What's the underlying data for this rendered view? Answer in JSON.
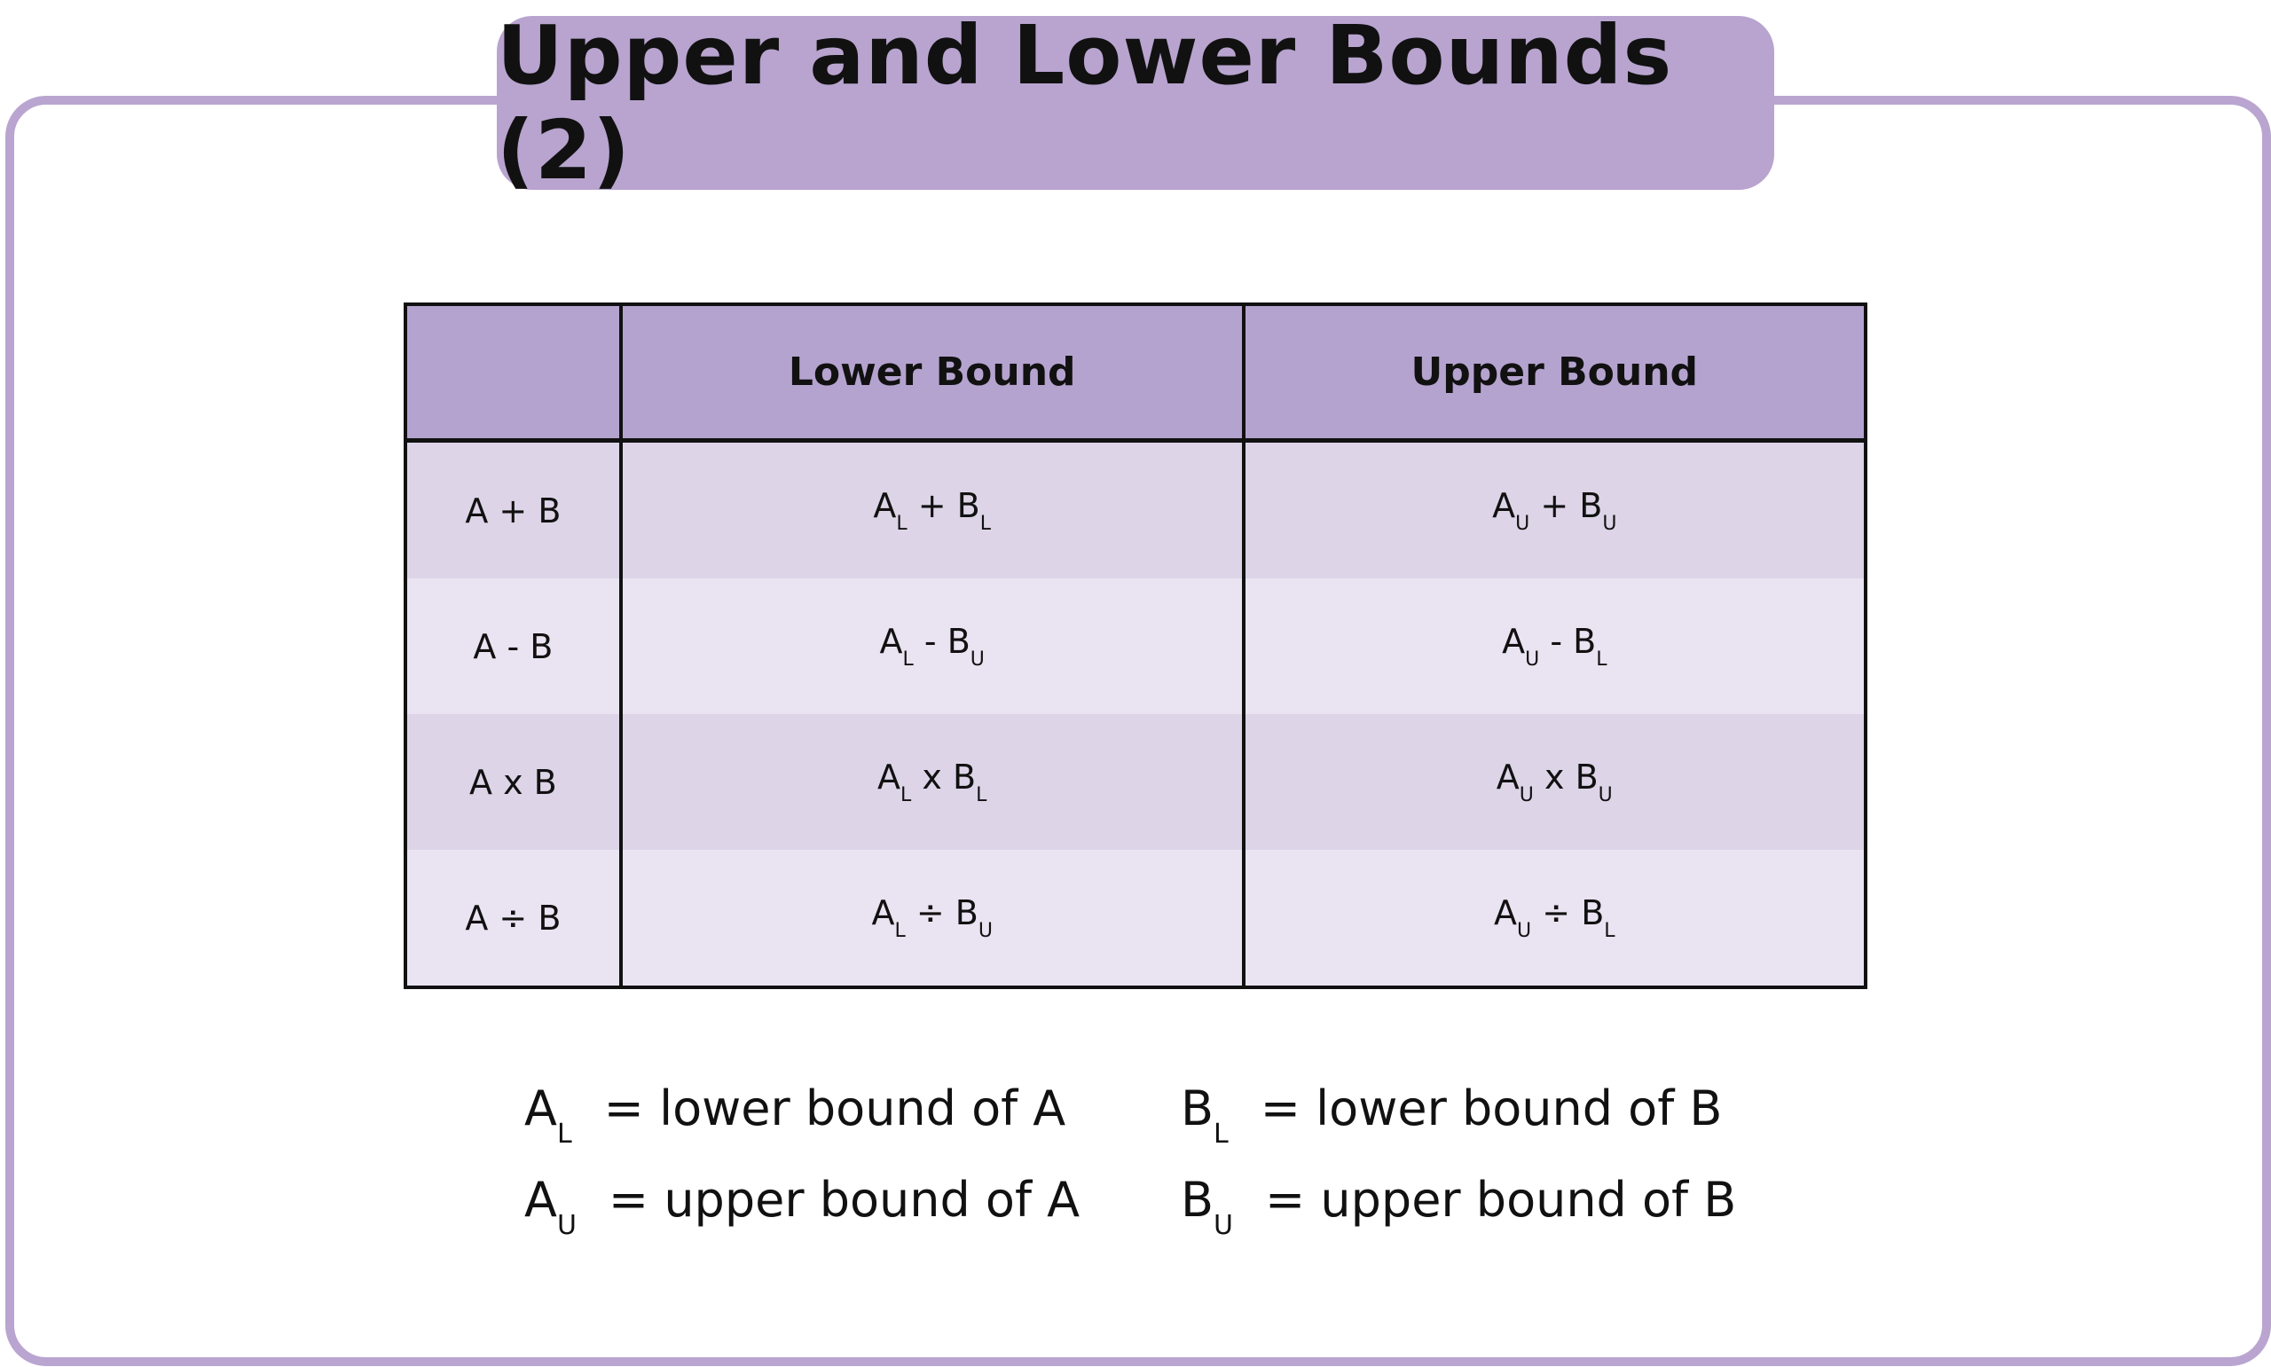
{
  "title": "Upper and Lower Bounds (2)",
  "table": {
    "headers": [
      "",
      "Lower Bound",
      "Upper Bound"
    ],
    "rows": [
      {
        "op": "A + B",
        "lower": {
          "a": "A",
          "a_sub": "L",
          "sym": "+",
          "b": "B",
          "b_sub": "L"
        },
        "upper": {
          "a": "A",
          "a_sub": "U",
          "sym": "+",
          "b": "B",
          "b_sub": "U"
        }
      },
      {
        "op": "A - B",
        "lower": {
          "a": "A",
          "a_sub": "L",
          "sym": "-",
          "b": "B",
          "b_sub": "U"
        },
        "upper": {
          "a": "A",
          "a_sub": "U",
          "sym": "-",
          "b": "B",
          "b_sub": "L"
        }
      },
      {
        "op": "A x B",
        "lower": {
          "a": "A",
          "a_sub": "L",
          "sym": "x",
          "b": "B",
          "b_sub": "L"
        },
        "upper": {
          "a": "A",
          "a_sub": "U",
          "sym": "x",
          "b": "B",
          "b_sub": "U"
        }
      },
      {
        "op": "A ÷ B",
        "lower": {
          "a": "A",
          "a_sub": "L",
          "sym": "÷",
          "b": "B",
          "b_sub": "U"
        },
        "upper": {
          "a": "A",
          "a_sub": "U",
          "sym": "÷",
          "b": "B",
          "b_sub": "L"
        }
      }
    ]
  },
  "legend": [
    {
      "sym": "A",
      "sub": "L",
      "text": "= lower bound of A"
    },
    {
      "sym": "B",
      "sub": "L",
      "text": "= lower bound of B"
    },
    {
      "sym": "A",
      "sub": "U",
      "text": "= upper bound of A"
    },
    {
      "sym": "B",
      "sub": "U",
      "text": "= upper bound of B"
    }
  ],
  "colors": {
    "accent": "#b8a4cf",
    "row_dark": "#ddd4e8",
    "row_light": "#eae3f1"
  }
}
